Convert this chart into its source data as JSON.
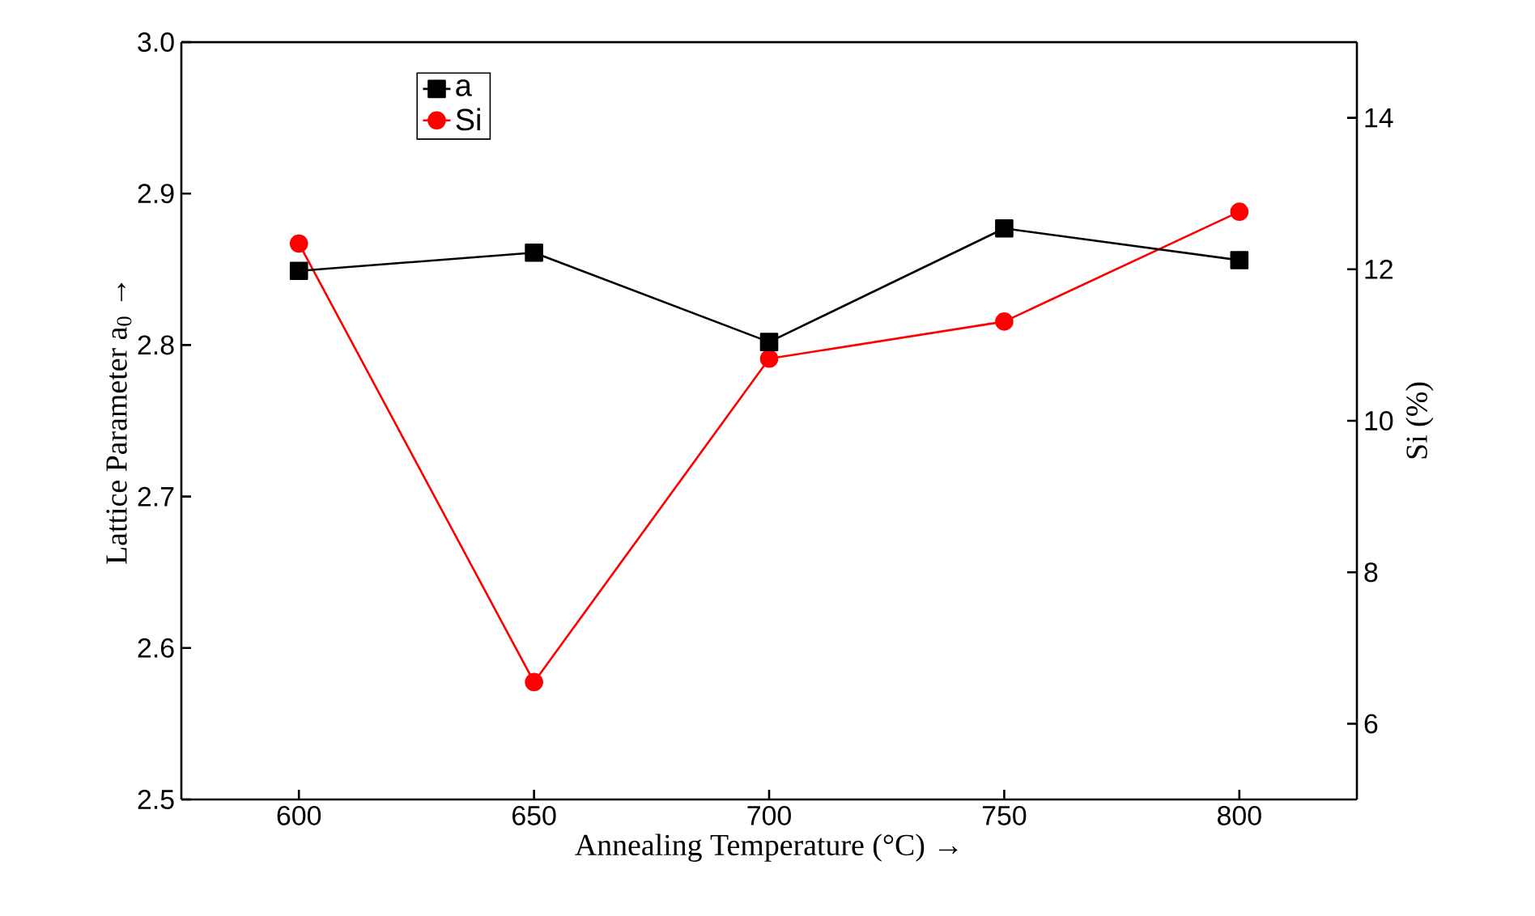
{
  "chart_data": {
    "type": "line",
    "xlabel": "Annealing Temperature (°C) →",
    "ylabel": "Lattice Parameter a$_{0}$ →",
    "y2label": "Si (%)",
    "x": [
      600,
      650,
      700,
      750,
      800
    ],
    "series": [
      {
        "name": "a",
        "color": "#000000",
        "marker": "square",
        "values": [
          2.849,
          2.861,
          2.802,
          2.877,
          2.856
        ]
      },
      {
        "name": "Si",
        "color": "#ff0000",
        "marker": "circle",
        "axis": "y2",
        "values": [
          12.34,
          6.55,
          10.82,
          11.31,
          12.76
        ]
      }
    ],
    "xlim": [
      575,
      825
    ],
    "xticks": [
      600,
      650,
      700,
      750,
      800
    ],
    "ylim": [
      2.5,
      3.0
    ],
    "yticks": [
      2.5,
      2.6,
      2.7,
      2.8,
      2.9,
      {
        "value": 3,
        "label": "3.0"
      }
    ],
    "y2lim": [
      5,
      15
    ],
    "y2ticks": [
      6,
      8,
      10,
      12,
      14
    ],
    "grid": false,
    "legend": "top left",
    "line_style": "solid"
  }
}
